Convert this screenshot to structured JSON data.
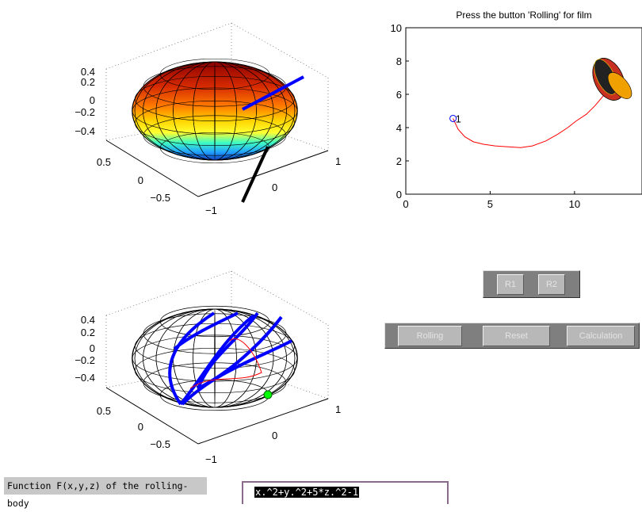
{
  "figure1": {
    "ztick_labels": [
      "0.4",
      "0.2",
      "0",
      "−0.2",
      "−0.4"
    ],
    "xtick_labels": [
      "0.5",
      "0",
      "−0.5"
    ],
    "ytick_labels": [
      "1",
      "0",
      "−1"
    ]
  },
  "figure2": {
    "ztick_labels": [
      "0.4",
      "0.2",
      "0",
      "−0.2",
      "−0.4"
    ],
    "xtick_labels": [
      "0.5",
      "0",
      "−0.5"
    ],
    "ytick_labels": [
      "1",
      "0",
      "−1"
    ]
  },
  "chart_data": {
    "type": "line",
    "title": "Press the button 'Rolling' for film",
    "xlim": [
      0,
      14
    ],
    "ylim": [
      0,
      10
    ],
    "xticks": [
      "0",
      "5",
      "10"
    ],
    "yticks": [
      "0",
      "2",
      "4",
      "6",
      "8",
      "10"
    ],
    "x": [
      2.8,
      3.1,
      3.5,
      4.0,
      4.6,
      5.3,
      6.0,
      6.8,
      7.5,
      8.3,
      9.0,
      9.6,
      10.1,
      10.7,
      11.2,
      11.7,
      12.1
    ],
    "y": [
      4.55,
      3.9,
      3.45,
      3.15,
      3.0,
      2.9,
      2.85,
      2.8,
      2.9,
      3.2,
      3.6,
      4.0,
      4.4,
      4.8,
      5.3,
      5.9,
      6.8
    ],
    "series_color": "#ff0000",
    "marker": {
      "x": 2.8,
      "y": 4.55,
      "label": "1",
      "color": "#0000ff"
    }
  },
  "buttons": {
    "r1": "R1",
    "r2": "R2",
    "rolling": "Rolling",
    "reset": "Reset",
    "calculation": "Calculation"
  },
  "function_label": "Function F(x,y,z) of the rolling-body",
  "function_value": "x.^2+y.^2+5*z.^2-1",
  "colors": {
    "panel": "#7f7f7f",
    "button": "#b8b8b8",
    "path": "#ff0000",
    "contact_marker": "#00ff00",
    "rolling_curve": "#0000ff"
  }
}
